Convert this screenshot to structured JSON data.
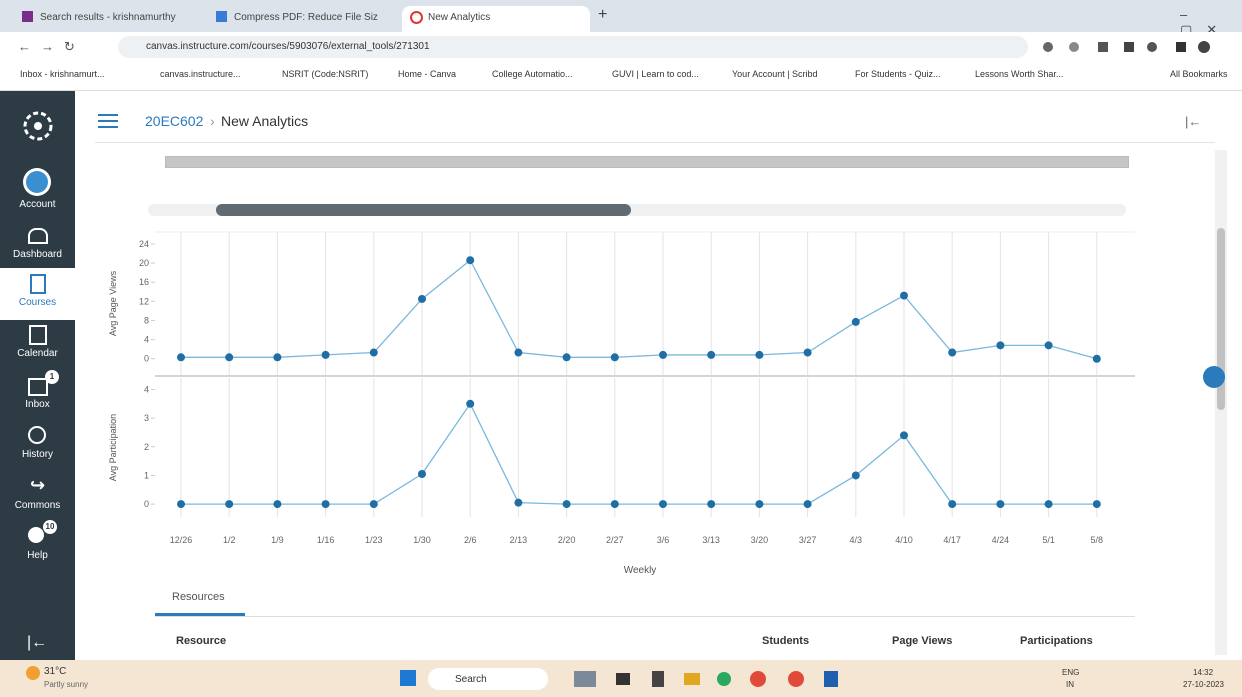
{
  "browser": {
    "tabs": [
      "Search results - krishnamurthy",
      "Compress PDF: Reduce File Siz",
      "New Analytics"
    ],
    "url": "canvas.instructure.com/courses/5903076/external_tools/271301",
    "bookmarks": [
      "Inbox - krishnamurt...",
      "canvas.instructure...",
      "NSRIT (Code:NSRIT)",
      "Home - Canva",
      "College Automatio...",
      "GUVI | Learn to cod...",
      "Your Account | Scribd",
      "For Students - Quiz...",
      "Lessons Worth Shar...",
      "All Bookmarks"
    ]
  },
  "sidebar": {
    "items": [
      "Account",
      "Dashboard",
      "Courses",
      "Calendar",
      "Inbox",
      "History",
      "Commons",
      "Help"
    ],
    "inbox_badge": "1",
    "help_badge": "10"
  },
  "header": {
    "course": "20EC602",
    "page": "New Analytics"
  },
  "chart_data": [
    {
      "type": "line",
      "y_label": "Avg Page Views",
      "values": [
        0.3,
        0.3,
        0.3,
        0.8,
        1.3,
        12.5,
        20.6,
        1.3,
        0.3,
        0.3,
        0.8,
        0.8,
        0.8,
        1.3,
        7.7,
        13.2,
        1.3,
        2.8,
        2.8,
        0
      ],
      "ylim": [
        -3.4,
        26.5
      ],
      "yticks": [
        0,
        4,
        8,
        12,
        16,
        20,
        24
      ],
      "color": "#7ab8de",
      "marker_color": "#1f6fa5",
      "grid": true
    },
    {
      "type": "line",
      "y_label": "Avg Participation",
      "x_label": "Weekly",
      "categories": [
        "12/26",
        "1/2",
        "1/9",
        "1/16",
        "1/23",
        "1/30",
        "2/6",
        "2/13",
        "2/20",
        "2/27",
        "3/6",
        "3/13",
        "3/20",
        "3/27",
        "4/3",
        "4/10",
        "4/17",
        "4/24",
        "5/1",
        "5/8"
      ],
      "values": [
        0,
        0,
        0,
        0,
        0,
        1.05,
        3.5,
        0.05,
        0,
        0,
        0,
        0,
        0,
        0,
        1,
        2.4,
        0,
        0,
        0,
        0
      ],
      "ylim": [
        -0.45,
        4.4
      ],
      "yticks": [
        0,
        1,
        2,
        3,
        4
      ],
      "color": "#7ab8de",
      "marker_color": "#1f6fa5",
      "grid": true
    }
  ],
  "table": {
    "tab": "Resources",
    "columns": [
      "Resource",
      "Students",
      "Page Views",
      "Participations"
    ]
  },
  "taskbar": {
    "temperature": "31°C",
    "weather": "Partly sunny",
    "search": "Search",
    "lang": "ENG",
    "region": "IN",
    "time": "14:32",
    "date": "27-10-2023"
  }
}
